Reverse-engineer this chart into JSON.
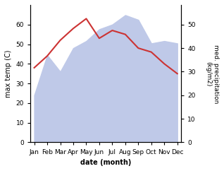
{
  "months": [
    "Jan",
    "Feb",
    "Mar",
    "Apr",
    "May",
    "Jun",
    "Jul",
    "Aug",
    "Sep",
    "Oct",
    "Nov",
    "Dec"
  ],
  "temperature": [
    38,
    44,
    52,
    58,
    63,
    53,
    57,
    55,
    48,
    46,
    40,
    35
  ],
  "precipitation": [
    20,
    37,
    30,
    40,
    43,
    48,
    50,
    54,
    52,
    42,
    43,
    42
  ],
  "temp_color": "#cc3333",
  "precip_fill_color": "#bfc9e8",
  "ylabel_left": "max temp (C)",
  "ylabel_right": "med. precipitation\n(kg/m2)",
  "xlabel": "date (month)",
  "ylim_left": [
    0,
    70
  ],
  "ylim_right": [
    0,
    58.33
  ],
  "yticks_left": [
    0,
    10,
    20,
    30,
    40,
    50,
    60
  ],
  "yticks_right": [
    0,
    10,
    20,
    30,
    40,
    50
  ],
  "background_color": "#ffffff",
  "fig_bg_color": "#ffffff",
  "figsize": [
    3.18,
    2.42
  ],
  "dpi": 100
}
